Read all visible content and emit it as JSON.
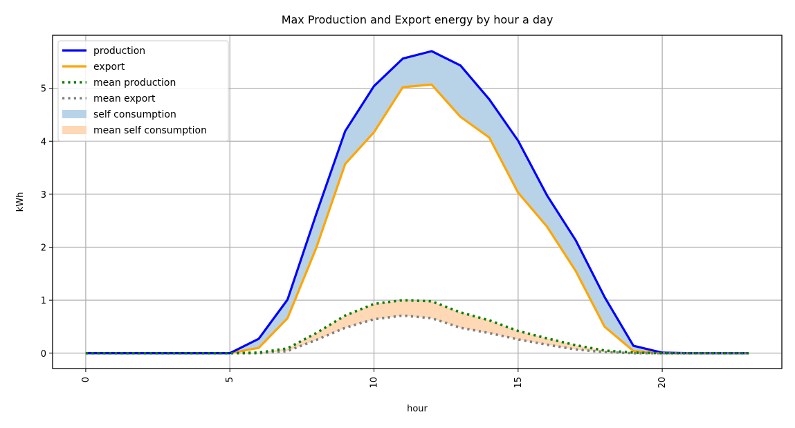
{
  "chart_data": {
    "type": "line",
    "title": "Max Production and Export energy by hour a day",
    "xlabel": "hour",
    "ylabel": "kWh",
    "xlim": [
      -1.15,
      24.15
    ],
    "ylim": [
      -0.29,
      6.0
    ],
    "grid": true,
    "legend_position": "top-left",
    "x_ticks": [
      0,
      5,
      10,
      15,
      20
    ],
    "y_ticks": [
      0,
      1,
      2,
      3,
      4,
      5
    ],
    "x": [
      0,
      1,
      2,
      3,
      4,
      5,
      6,
      7,
      8,
      9,
      10,
      11,
      12,
      13,
      14,
      15,
      16,
      17,
      18,
      19,
      20,
      21,
      22,
      23
    ],
    "series": [
      {
        "name": "production",
        "style": "solid",
        "color": "#0000ff",
        "values": [
          0,
          0,
          0,
          0,
          0,
          0,
          0.27,
          1.01,
          2.63,
          4.19,
          5.04,
          5.56,
          5.7,
          5.43,
          4.79,
          4.01,
          2.98,
          2.13,
          1.06,
          0.14,
          0.01,
          0,
          0,
          0
        ]
      },
      {
        "name": "export",
        "style": "solid",
        "color": "#ffa500",
        "values": [
          0,
          0,
          0,
          0,
          0,
          0,
          0.1,
          0.66,
          1.99,
          3.57,
          4.17,
          5.02,
          5.07,
          4.46,
          4.07,
          3.03,
          2.39,
          1.55,
          0.5,
          0.04,
          0,
          0,
          0,
          0
        ]
      },
      {
        "name": "mean production",
        "style": "dotted",
        "color": "#008000",
        "values": [
          0,
          0,
          0,
          0,
          0,
          0,
          0.01,
          0.09,
          0.38,
          0.71,
          0.93,
          1.0,
          0.98,
          0.77,
          0.62,
          0.42,
          0.28,
          0.15,
          0.05,
          0.01,
          0,
          0,
          0,
          0
        ]
      },
      {
        "name": "mean export",
        "style": "dotted",
        "color": "#808080",
        "values": [
          0,
          0,
          0,
          0,
          0,
          0,
          0,
          0.04,
          0.25,
          0.48,
          0.64,
          0.71,
          0.66,
          0.48,
          0.38,
          0.26,
          0.16,
          0.07,
          0.02,
          0,
          0,
          0,
          0,
          0
        ]
      }
    ],
    "fills": [
      {
        "name": "self consumption",
        "between": [
          "production",
          "export"
        ],
        "color": "#b8d3e8"
      },
      {
        "name": "mean self consumption",
        "between": [
          "mean production",
          "mean export"
        ],
        "color": "#ffd8b5"
      }
    ]
  }
}
